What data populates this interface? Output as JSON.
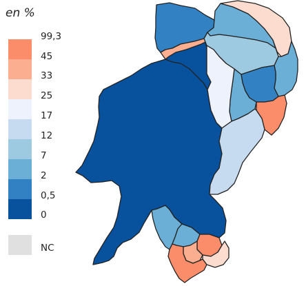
{
  "legend": {
    "title": "en %",
    "classes": [
      {
        "label": "99,3",
        "color": "#fc8d6a"
      },
      {
        "label": "45",
        "color": "#fcae91"
      },
      {
        "label": "33",
        "color": "#fddcd0"
      },
      {
        "label": "25",
        "color": "#eef2fc"
      },
      {
        "label": "17",
        "color": "#c6dbef"
      },
      {
        "label": "12",
        "color": "#9ecae1"
      },
      {
        "label": "7",
        "color": "#6baed6"
      },
      {
        "label": "2",
        "color": "#3282c3"
      },
      {
        "label": "0,5",
        "color": "#08519c"
      },
      {
        "label": "0",
        "color": ""
      }
    ],
    "nc": {
      "label": "NC",
      "color": "#e0e0e0"
    }
  },
  "map": {
    "regions": [
      {
        "name": "main-west",
        "class_index": 8
      },
      {
        "name": "north-center",
        "class_index": 8
      },
      {
        "name": "north-west-top",
        "class_index": 7
      },
      {
        "name": "north-top",
        "class_index": 6
      },
      {
        "name": "north-east-top",
        "class_index": 2
      },
      {
        "name": "north-salmon",
        "class_index": 1
      },
      {
        "name": "east-1",
        "class_index": 5
      },
      {
        "name": "east-2",
        "class_index": 6
      },
      {
        "name": "east-3",
        "class_index": 7
      },
      {
        "name": "east-4",
        "class_index": 6
      },
      {
        "name": "center-pale",
        "class_index": 3
      },
      {
        "name": "east-orange",
        "class_index": 0
      },
      {
        "name": "east-light",
        "class_index": 4
      },
      {
        "name": "south-blue",
        "class_index": 6
      },
      {
        "name": "south-blue-2",
        "class_index": 6
      },
      {
        "name": "south-orange-1",
        "class_index": 0
      },
      {
        "name": "south-salmon",
        "class_index": 1
      },
      {
        "name": "south-pink",
        "class_index": 2
      },
      {
        "name": "south-orange-2",
        "class_index": 0
      }
    ]
  }
}
